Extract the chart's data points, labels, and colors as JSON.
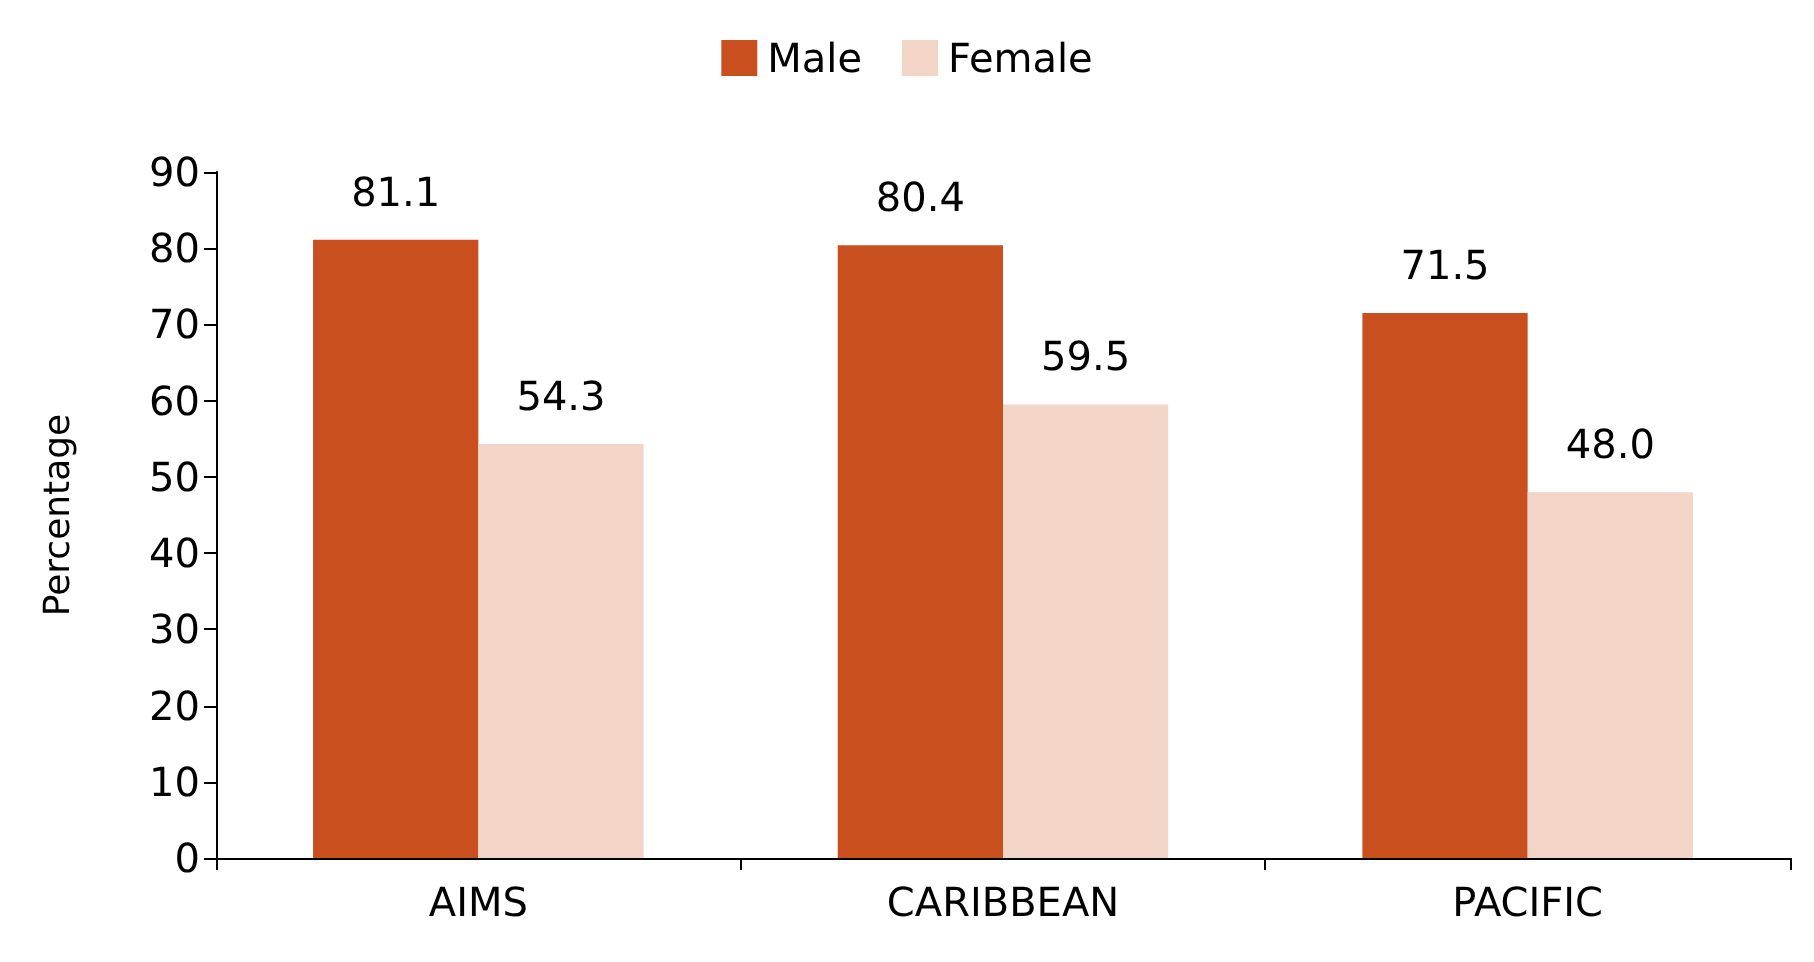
{
  "chart_data": {
    "type": "bar",
    "ylabel": "Percentage",
    "categories": [
      "AIMS",
      "CARIBBEAN",
      "PACIFIC"
    ],
    "series": [
      {
        "name": "Male",
        "color": "#c9501e",
        "values": [
          81.1,
          80.4,
          71.5
        ],
        "value_labels": [
          "81.1",
          "80.4",
          "71.5"
        ]
      },
      {
        "name": "Female",
        "color": "#f2d5c7",
        "values": [
          54.3,
          59.5,
          48.0
        ],
        "value_labels": [
          "54.3",
          "59.5",
          "48.0"
        ]
      }
    ],
    "ylim": [
      0,
      90
    ],
    "yticks": [
      0,
      10,
      20,
      30,
      40,
      50,
      60,
      70,
      80,
      90
    ],
    "legend": "top",
    "grid": false
  }
}
